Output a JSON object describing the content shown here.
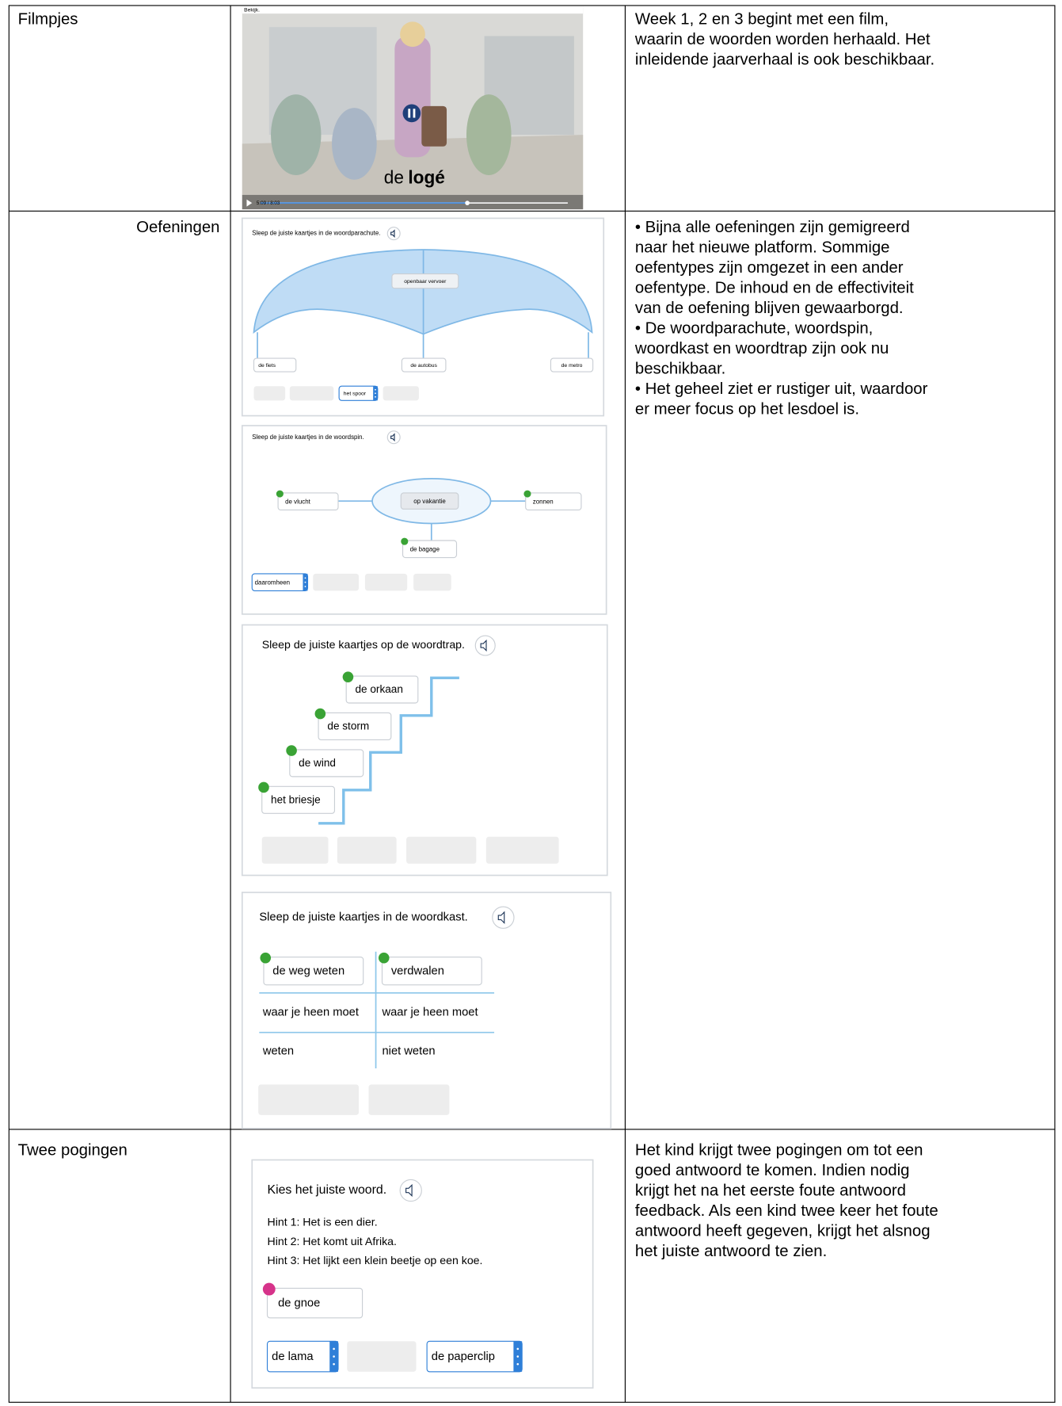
{
  "table": {
    "rows": [
      {
        "label": "Filmpjes",
        "screenshot": {
          "caption": "Bekijk.",
          "subtitle_article": "de",
          "subtitle_word": "logé",
          "time": "5:09 / 8:03"
        },
        "description": [
          "Week 1, 2 en 3 begint met een film,",
          "waarin de woorden worden herhaald. Het",
          "inleidende jaarverhaal is ook beschikbaar."
        ]
      },
      {
        "label": "Oefeningen",
        "screenshot": {
          "exercises": [
            {
              "instruction": "Sleep de juiste kaartjes in de woordparachute.",
              "cards": [
                "openbaar vervoer",
                "de fiets",
                "de autobus",
                "de metro"
              ],
              "options": [
                "het spoor"
              ]
            },
            {
              "instruction": "Sleep de juiste kaartjes in de woordspin.",
              "cards": [
                "op vakantie",
                "de vlucht",
                "zonnen",
                "de bagage"
              ],
              "options": [
                "daaromheen"
              ]
            },
            {
              "instruction": "Sleep de juiste kaartjes op de woordtrap.",
              "cards": [
                "de orkaan",
                "de storm",
                "de wind",
                "het briesje"
              ]
            },
            {
              "instruction": "Sleep de juiste kaartjes in de woordkast.",
              "cards": [
                "de weg weten",
                "verdwalen"
              ],
              "cells": [
                [
                  "waar je heen moet",
                  "waar je heen moet"
                ],
                [
                  "weten",
                  "niet weten"
                ]
              ]
            }
          ]
        },
        "description": [
          "• Bijna alle oefeningen zijn gemigreerd",
          "naar het nieuwe platform. Sommige",
          "oefentypes zijn omgezet in een ander",
          "oefentype. De inhoud en de effectiviteit",
          "van de oefening blijven gewaarborgd.",
          "• De woordparachute, woordspin,",
          "woordkast en woordtrap zijn ook nu",
          "beschikbaar.",
          "• Het geheel ziet er rustiger uit, waardoor",
          "er meer focus op het lesdoel is."
        ]
      },
      {
        "label": "Twee pogingen",
        "screenshot": {
          "instruction": "Kies het juiste woord.",
          "hints": [
            "Hint 1: Het is een dier.",
            "Hint 2: Het komt uit Afrika.",
            "Hint 3: Het lijkt een klein beetje op een koe."
          ],
          "answer": "de gnoe",
          "options": [
            "de lama",
            "de paperclip"
          ]
        },
        "description": [
          "Het kind krijgt twee pogingen om tot een",
          "goed antwoord te komen. Indien nodig",
          "krijgt het na het eerste foute antwoord",
          "feedback. Als een kind twee keer het foute",
          "antwoord heeft gegeven, krijgt het alsnog",
          "het juiste antwoord te zien."
        ]
      }
    ]
  }
}
